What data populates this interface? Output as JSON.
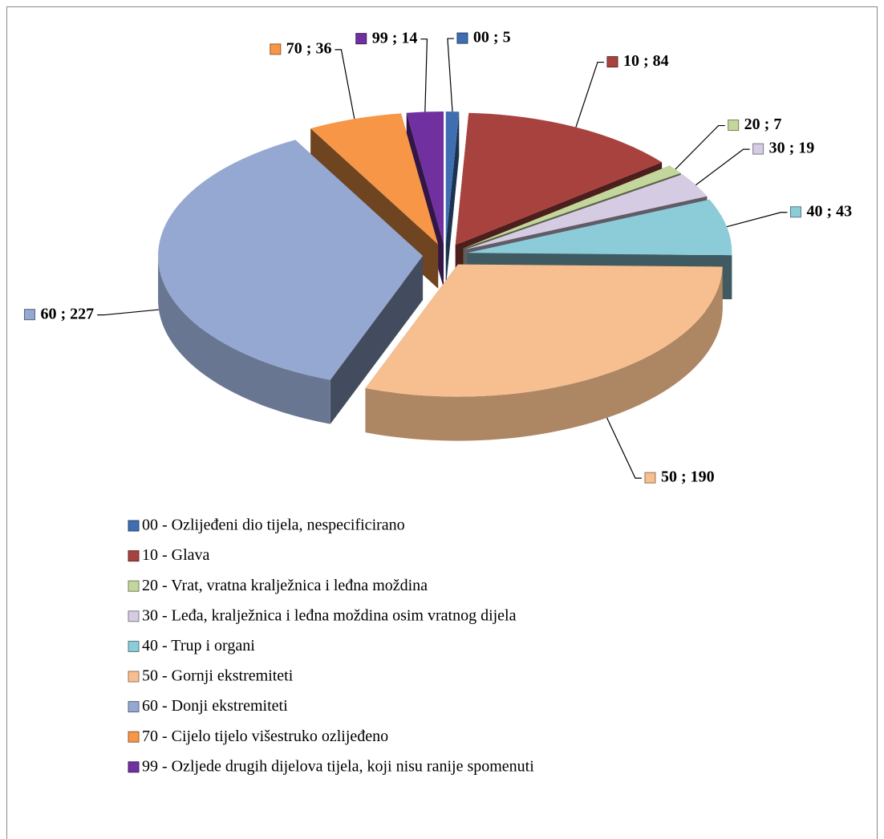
{
  "chart_data": {
    "type": "pie",
    "three_d": true,
    "exploded": true,
    "legend": "bottom",
    "categories": [
      "00 - Ozlijeđeni dio tijela, nespecificirano",
      "10 - Glava",
      "20 - Vrat, vratna kralježnica i leđna moždina",
      "30 - Leđa, kralježnica i leđna moždina osim vratnog dijela",
      "40 - Trup i organi",
      "50 - Gornji ekstremiteti",
      "60 - Donji ekstremiteti",
      "70 - Cijelo tijelo višestruko ozlijeđeno",
      "99 - Ozljede drugih dijelova tijela, koji nisu ranije spomenuti"
    ],
    "values": [
      5,
      84,
      7,
      19,
      43,
      190,
      227,
      36,
      14
    ],
    "value_labels": [
      "00 ; 5",
      "10 ; 84",
      "20 ; 7",
      "30 ; 19",
      "40 ; 43",
      "50 ; 190",
      "60 ; 227",
      "70 ; 36",
      "99 ; 14"
    ],
    "colors": [
      "#3f6fb0",
      "#a8423f",
      "#c3d69b",
      "#d5cbe3",
      "#8ccbd8",
      "#f7bf8f",
      "#95a8d1",
      "#f79646",
      "#7030a0"
    ]
  }
}
